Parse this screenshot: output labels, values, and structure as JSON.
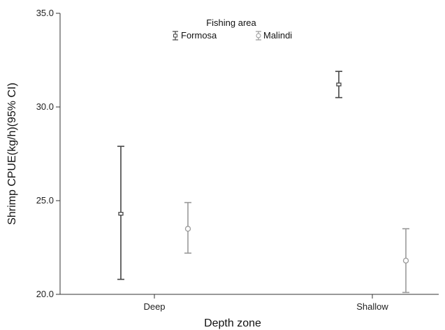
{
  "chart_data": {
    "type": "errorbar",
    "title": "",
    "xlabel": "Depth zone",
    "ylabel": "Shrimp CPUE(kg/h)(95% CI)",
    "categories": [
      "Deep",
      "Shallow"
    ],
    "ylim": [
      20.0,
      35.0
    ],
    "yticks": [
      "20.0",
      "25.0",
      "30.0",
      "35.0"
    ],
    "grid": false,
    "legend": {
      "title": "Fishing area",
      "placement": "top-center"
    },
    "series": [
      {
        "name": "Formosa",
        "marker": "square",
        "color": "#444444",
        "points": [
          {
            "category": "Deep",
            "mean": 24.3,
            "lower": 20.8,
            "upper": 27.9
          },
          {
            "category": "Shallow",
            "mean": 31.2,
            "lower": 30.5,
            "upper": 31.9
          }
        ]
      },
      {
        "name": "Malindi",
        "marker": "circle",
        "color": "#9a9a9a",
        "points": [
          {
            "category": "Deep",
            "mean": 23.5,
            "lower": 22.2,
            "upper": 24.9
          },
          {
            "category": "Shallow",
            "mean": 21.8,
            "lower": 20.1,
            "upper": 23.5
          }
        ]
      }
    ]
  }
}
